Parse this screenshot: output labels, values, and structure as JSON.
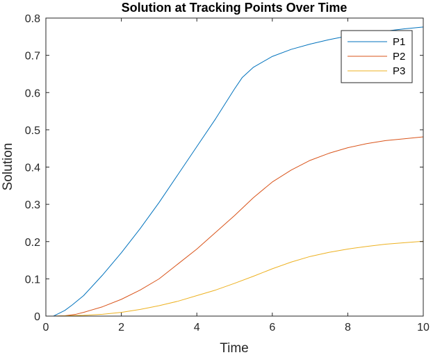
{
  "chart_data": {
    "type": "line",
    "title": "Solution at Tracking Points Over Time",
    "xlabel": "Time",
    "ylabel": "Solution",
    "xlim": [
      0,
      10
    ],
    "ylim": [
      0,
      0.8
    ],
    "xticks": [
      0,
      2,
      4,
      6,
      8,
      10
    ],
    "xtick_labels": [
      "0",
      "2",
      "4",
      "6",
      "8",
      "10"
    ],
    "yticks": [
      0,
      0.1,
      0.2,
      0.3,
      0.4,
      0.5,
      0.6,
      0.7,
      0.8
    ],
    "ytick_labels": [
      "0",
      "0.1",
      "0.2",
      "0.3",
      "0.4",
      "0.5",
      "0.6",
      "0.7",
      "0.8"
    ],
    "grid": false,
    "legend_position": "top-right",
    "series": [
      {
        "name": "P1",
        "color": "#0072BD",
        "x": [
          0.2,
          0.3,
          0.5,
          0.7,
          1.0,
          1.5,
          2.0,
          2.5,
          3.0,
          3.5,
          4.0,
          4.5,
          5.0,
          5.2,
          5.5,
          6.0,
          6.5,
          7.0,
          7.5,
          8.0,
          8.5,
          9.0,
          9.5,
          10.0
        ],
        "y": [
          0.0,
          0.005,
          0.015,
          0.03,
          0.055,
          0.11,
          0.17,
          0.235,
          0.305,
          0.38,
          0.455,
          0.53,
          0.61,
          0.64,
          0.668,
          0.697,
          0.716,
          0.73,
          0.742,
          0.752,
          0.759,
          0.765,
          0.771,
          0.776
        ]
      },
      {
        "name": "P2",
        "color": "#D95319",
        "x": [
          0.2,
          0.5,
          0.8,
          1.0,
          1.5,
          2.0,
          2.5,
          3.0,
          3.5,
          4.0,
          4.5,
          5.0,
          5.5,
          6.0,
          6.5,
          7.0,
          7.5,
          8.0,
          8.5,
          9.0,
          9.5,
          10.0
        ],
        "y": [
          0.0,
          0.001,
          0.005,
          0.01,
          0.025,
          0.045,
          0.07,
          0.1,
          0.14,
          0.18,
          0.225,
          0.27,
          0.318,
          0.36,
          0.392,
          0.418,
          0.437,
          0.452,
          0.463,
          0.471,
          0.476,
          0.481
        ]
      },
      {
        "name": "P3",
        "color": "#EDB120",
        "x": [
          0.2,
          1.0,
          1.5,
          2.0,
          2.5,
          3.0,
          3.5,
          4.0,
          4.5,
          5.0,
          5.5,
          6.0,
          6.5,
          7.0,
          7.5,
          8.0,
          8.5,
          9.0,
          9.5,
          10.0
        ],
        "y": [
          0.0,
          0.002,
          0.005,
          0.01,
          0.018,
          0.028,
          0.04,
          0.055,
          0.07,
          0.088,
          0.107,
          0.127,
          0.145,
          0.16,
          0.171,
          0.18,
          0.187,
          0.193,
          0.197,
          0.201
        ]
      }
    ]
  }
}
